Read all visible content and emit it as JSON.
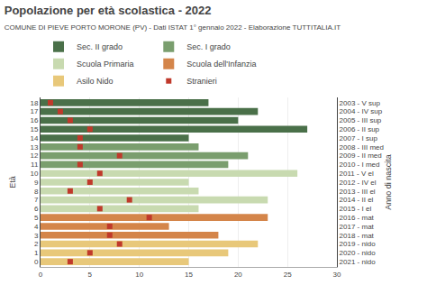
{
  "chart_data": {
    "type": "bar",
    "orientation": "horizontal",
    "title": "Popolazione per età scolastica - 2022",
    "subtitle": "COMUNE DI PIEVE PORTO MORONE (PV) - Dati ISTAT 1° gennaio 2022 - Elaborazione TUTTITALIA.IT",
    "ylabel": "Età",
    "y2label": "Anno di nascita",
    "categories": [
      18,
      17,
      16,
      15,
      14,
      13,
      12,
      11,
      10,
      9,
      8,
      7,
      6,
      5,
      4,
      3,
      2,
      1,
      0
    ],
    "series": [
      {
        "name": "Sec. II grado",
        "type": "bar",
        "color": "#4a7049",
        "values": [
          17,
          22,
          20,
          27,
          15,
          null,
          null,
          null,
          null,
          null,
          null,
          null,
          null,
          null,
          null,
          null,
          null,
          null,
          null
        ]
      },
      {
        "name": "Sec. I grado",
        "type": "bar",
        "color": "#7a9e6e",
        "values": [
          null,
          null,
          null,
          null,
          null,
          16,
          21,
          19,
          null,
          null,
          null,
          null,
          null,
          null,
          null,
          null,
          null,
          null,
          null
        ]
      },
      {
        "name": "Scuola Primaria",
        "type": "bar",
        "color": "#c8dab0",
        "values": [
          null,
          null,
          null,
          null,
          null,
          null,
          null,
          null,
          26,
          15,
          16,
          23,
          16,
          null,
          null,
          null,
          null,
          null,
          null
        ]
      },
      {
        "name": "Scuola dell'Infanzia",
        "type": "bar",
        "color": "#d4854a",
        "values": [
          null,
          null,
          null,
          null,
          null,
          null,
          null,
          null,
          null,
          null,
          null,
          null,
          null,
          23,
          13,
          18,
          null,
          null,
          null
        ]
      },
      {
        "name": "Asilo Nido",
        "type": "bar",
        "color": "#e8c87a",
        "values": [
          null,
          null,
          null,
          null,
          null,
          null,
          null,
          null,
          null,
          null,
          null,
          null,
          null,
          null,
          null,
          null,
          22,
          19,
          15
        ]
      },
      {
        "name": "Stranieri",
        "type": "scatter",
        "marker": "square",
        "color": "#c0392b",
        "values": [
          1,
          2,
          3,
          5,
          4,
          4,
          8,
          4,
          6,
          5,
          3,
          9,
          6,
          11,
          7,
          7,
          8,
          5,
          3
        ]
      }
    ],
    "xlim": [
      0,
      30
    ],
    "xticks": [
      0,
      5,
      10,
      15,
      20,
      25,
      30
    ],
    "ylim": [
      -0.6,
      18.6
    ],
    "yticks": [
      18,
      17,
      16,
      15,
      14,
      13,
      12,
      11,
      10,
      9,
      8,
      7,
      6,
      5,
      4,
      3,
      2,
      1,
      0
    ],
    "y2lim": [
      -0.6,
      18.6
    ],
    "y2ticks": [
      {
        "value": 18,
        "label": "2003 - V sup"
      },
      {
        "value": 17,
        "label": "2004 - IV sup"
      },
      {
        "value": 16,
        "label": "2005 - III sup"
      },
      {
        "value": 15,
        "label": "2006 - II sup"
      },
      {
        "value": 14,
        "label": "2007 - I sup"
      },
      {
        "value": 13,
        "label": "2008 - III med"
      },
      {
        "value": 12,
        "label": "2009 - II med"
      },
      {
        "value": 11,
        "label": "2010 - I med"
      },
      {
        "value": 10,
        "label": "2011 - V el"
      },
      {
        "value": 9,
        "label": "2012 - IV el"
      },
      {
        "value": 8,
        "label": "2013 - III el"
      },
      {
        "value": 7,
        "label": "2014 - II el"
      },
      {
        "value": 6,
        "label": "2015 - I el"
      },
      {
        "value": 5,
        "label": "2016 - mat"
      },
      {
        "value": 4,
        "label": "2017 - mat"
      },
      {
        "value": 3,
        "label": "2018 - mat"
      },
      {
        "value": 2,
        "label": "2019 - nido"
      },
      {
        "value": 1,
        "label": "2020 - nido"
      },
      {
        "value": 0,
        "label": "2021 - nido"
      }
    ],
    "grid": true,
    "legend": "top"
  }
}
